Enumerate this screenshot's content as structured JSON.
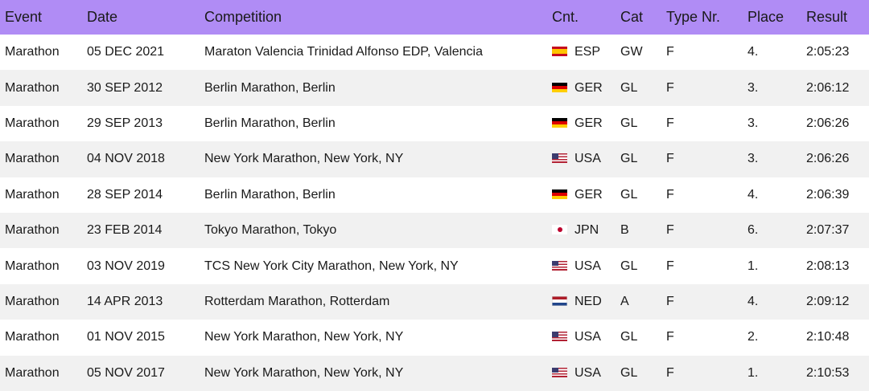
{
  "headers": {
    "event": "Event",
    "date": "Date",
    "competition": "Competition",
    "country": "Cnt.",
    "category": "Cat",
    "type": "Type Nr.",
    "place": "Place",
    "result": "Result"
  },
  "rows": [
    {
      "event": "Marathon",
      "date": "05 DEC 2021",
      "competition": "Maraton Valencia Trinidad Alfonso EDP, Valencia",
      "flag": "flag-esp",
      "country": "ESP",
      "category": "GW",
      "type": "F",
      "place": "4.",
      "result": "2:05:23"
    },
    {
      "event": "Marathon",
      "date": "30 SEP 2012",
      "competition": "Berlin Marathon, Berlin",
      "flag": "flag-ger",
      "country": "GER",
      "category": "GL",
      "type": "F",
      "place": "3.",
      "result": "2:06:12"
    },
    {
      "event": "Marathon",
      "date": "29 SEP 2013",
      "competition": "Berlin Marathon, Berlin",
      "flag": "flag-ger",
      "country": "GER",
      "category": "GL",
      "type": "F",
      "place": "3.",
      "result": "2:06:26"
    },
    {
      "event": "Marathon",
      "date": "04 NOV 2018",
      "competition": "New York Marathon, New York, NY",
      "flag": "flag-usa",
      "country": "USA",
      "category": "GL",
      "type": "F",
      "place": "3.",
      "result": "2:06:26"
    },
    {
      "event": "Marathon",
      "date": "28 SEP 2014",
      "competition": "Berlin Marathon, Berlin",
      "flag": "flag-ger",
      "country": "GER",
      "category": "GL",
      "type": "F",
      "place": "4.",
      "result": "2:06:39"
    },
    {
      "event": "Marathon",
      "date": "23 FEB 2014",
      "competition": "Tokyo Marathon, Tokyo",
      "flag": "flag-jpn",
      "country": "JPN",
      "category": "B",
      "type": "F",
      "place": "6.",
      "result": "2:07:37"
    },
    {
      "event": "Marathon",
      "date": "03 NOV 2019",
      "competition": "TCS New York City Marathon, New York, NY",
      "flag": "flag-usa",
      "country": "USA",
      "category": "GL",
      "type": "F",
      "place": "1.",
      "result": "2:08:13"
    },
    {
      "event": "Marathon",
      "date": "14 APR 2013",
      "competition": "Rotterdam Marathon, Rotterdam",
      "flag": "flag-ned",
      "country": "NED",
      "category": "A",
      "type": "F",
      "place": "4.",
      "result": "2:09:12"
    },
    {
      "event": "Marathon",
      "date": "01 NOV 2015",
      "competition": "New York Marathon, New York, NY",
      "flag": "flag-usa",
      "country": "USA",
      "category": "GL",
      "type": "F",
      "place": "2.",
      "result": "2:10:48"
    },
    {
      "event": "Marathon",
      "date": "05 NOV 2017",
      "competition": "New York Marathon, New York, NY",
      "flag": "flag-usa",
      "country": "USA",
      "category": "GL",
      "type": "F",
      "place": "1.",
      "result": "2:10:53"
    }
  ],
  "colors": {
    "header_background": "#b08cf5",
    "row_alt_background": "#f1f1f1"
  }
}
